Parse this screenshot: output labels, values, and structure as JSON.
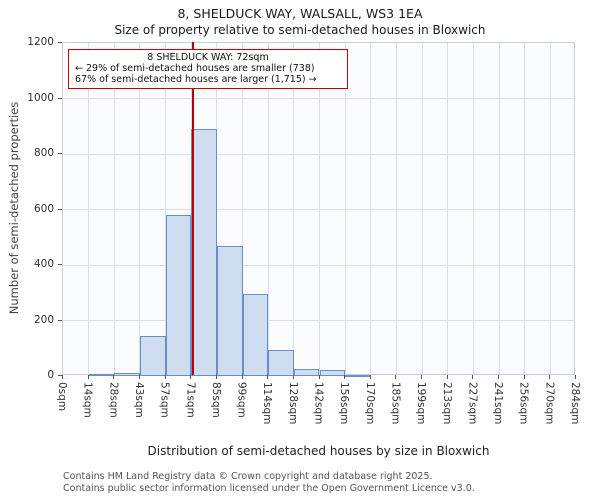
{
  "title": "8, SHELDUCK WAY, WALSALL, WS3 1EA",
  "subtitle": "Size of property relative to semi-detached houses in Bloxwich",
  "annotation": {
    "line1": "8 SHELDUCK WAY: 72sqm",
    "line2": "← 29% of semi-detached houses are smaller (738)",
    "line3": "67% of semi-detached houses are larger (1,715) →"
  },
  "chart_data": {
    "type": "bar",
    "title": "8, SHELDUCK WAY, WALSALL, WS3 1EA — Size of property relative to semi-detached houses in Bloxwich",
    "xlabel": "Distribution of semi-detached houses by size in Bloxwich",
    "ylabel": "Number of semi-detached properties",
    "categories": [
      "0sqm",
      "14sqm",
      "28sqm",
      "43sqm",
      "57sqm",
      "71sqm",
      "85sqm",
      "99sqm",
      "114sqm",
      "128sqm",
      "142sqm",
      "156sqm",
      "170sqm",
      "185sqm",
      "199sqm",
      "213sqm",
      "227sqm",
      "241sqm",
      "256sqm",
      "270sqm",
      "284sqm"
    ],
    "bin_edges_sqm": [
      0,
      14,
      28,
      43,
      57,
      71,
      85,
      99,
      114,
      128,
      142,
      156,
      170,
      185,
      199,
      213,
      227,
      241,
      256,
      270,
      284
    ],
    "values": [
      0,
      6,
      10,
      145,
      580,
      890,
      470,
      295,
      95,
      25,
      20,
      5,
      0,
      0,
      0,
      0,
      0,
      0,
      0,
      0
    ],
    "ylim": [
      0,
      1200
    ],
    "yticks": [
      0,
      200,
      400,
      600,
      800,
      1000,
      1200
    ],
    "grid": true,
    "legend": "none",
    "marker_value_sqm": 72,
    "marker_color": "#bb0000",
    "bar_fill": "#cfddf1",
    "bar_border": "#6a8fc7"
  },
  "footer": {
    "line1": "Contains HM Land Registry data © Crown copyright and database right 2025.",
    "line2": "Contains public sector information licensed under the Open Government Licence v3.0."
  }
}
